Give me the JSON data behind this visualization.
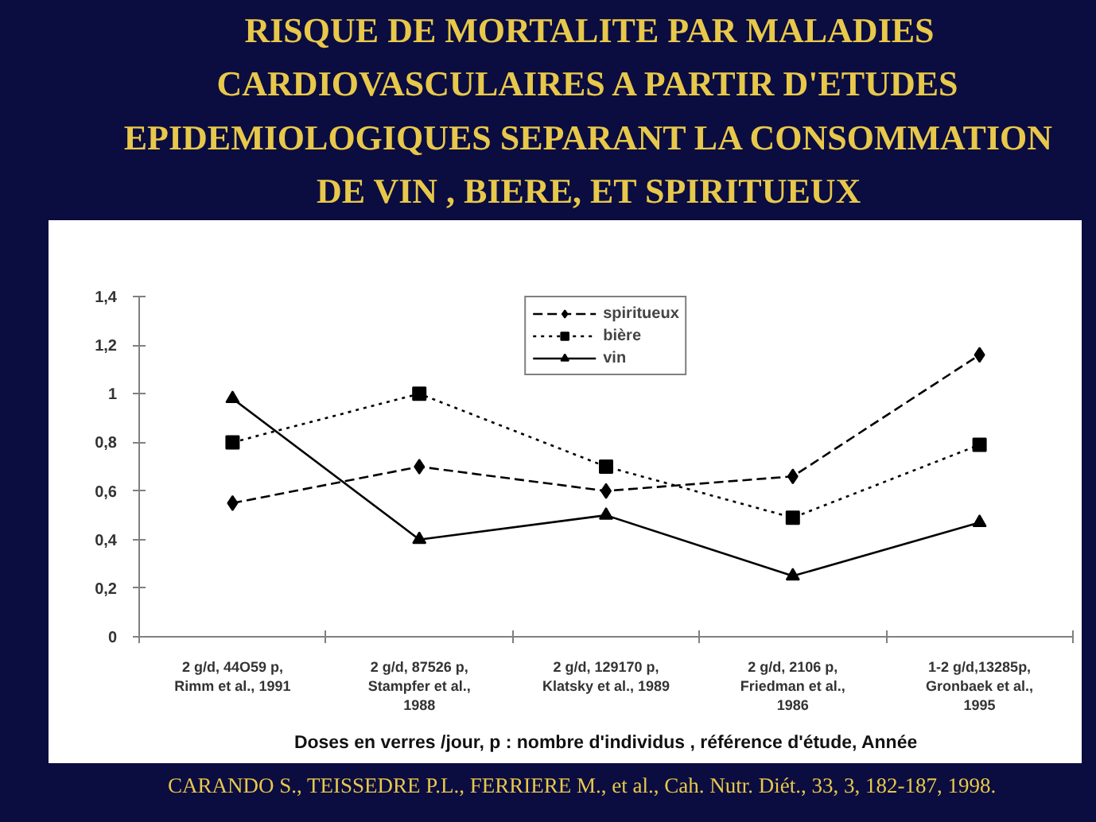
{
  "chart_data": {
    "type": "line",
    "title": "RISQUE DE MORTALITE PAR MALADIES CARDIOVASCULAIRES A PARTIR D'ETUDES EPIDEMIOLOGIQUES SEPARANT LA CONSOMMATION DE VIN , BIERE, ET SPIRITUEUX",
    "xlabel": "Doses en verres /jour, p : nombre d'individus , référence d'étude, Année",
    "annotations": [
      "CARANDO S., TEISSEDRE P.L., FERRIERE M., et al., Cah. Nutr. Diét., 33, 3, 182-187, 1998."
    ],
    "categories": [
      "2 g/d, 44O59 p,\nRimm et al., 1991",
      "2 g/d, 87526 p,\nStampfer et al.,\n1988",
      "2 g/d, 129170 p,\nKlatsky et al., 1989",
      "2 g/d, 2106 p,\nFriedman et al.,\n1986",
      "1-2 g/d,13285p,\nGronbaek et al.,\n1995"
    ],
    "series": [
      {
        "name": "spiritueux",
        "color": "#000000",
        "marker": "diamond",
        "line_style": "dashed",
        "values": [
          0.55,
          0.7,
          0.6,
          0.66,
          1.16
        ]
      },
      {
        "name": "bière",
        "color": "#000000",
        "marker": "square",
        "line_style": "dotted",
        "values": [
          0.8,
          1.0,
          0.7,
          0.49,
          0.79
        ]
      },
      {
        "name": "vin",
        "color": "#000000",
        "marker": "triangle",
        "line_style": "solid",
        "values": [
          0.98,
          0.4,
          0.5,
          0.25,
          0.47
        ]
      }
    ],
    "ylim": [
      0,
      1.4
    ],
    "yticks": [
      0,
      {
        "value": 0.2,
        "label": "0,2"
      },
      {
        "value": 0.4,
        "label": "0,4"
      },
      {
        "value": 0.6,
        "label": "0,6"
      },
      {
        "value": 0.8,
        "label": "0,8"
      },
      1,
      {
        "value": 1.2,
        "label": "1,2"
      },
      {
        "value": 1.4,
        "label": "1,4"
      }
    ],
    "legend": "top"
  }
}
